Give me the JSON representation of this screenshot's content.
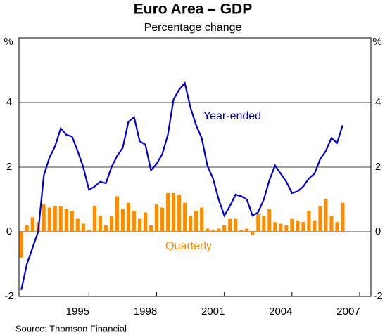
{
  "chart_data": {
    "type": "bar_line",
    "title": "Euro Area – GDP",
    "subtitle": "Percentage change",
    "y_unit": "%",
    "source": "Source: Thomson Financial",
    "x": [
      1992.0,
      1992.25,
      1992.5,
      1992.75,
      1993.0,
      1993.25,
      1993.5,
      1993.75,
      1994.0,
      1994.25,
      1994.5,
      1994.75,
      1995.0,
      1995.25,
      1995.5,
      1995.75,
      1996.0,
      1996.25,
      1996.5,
      1996.75,
      1997.0,
      1997.25,
      1997.5,
      1997.75,
      1998.0,
      1998.25,
      1998.5,
      1998.75,
      1999.0,
      1999.25,
      1999.5,
      1999.75,
      2000.0,
      2000.25,
      2000.5,
      2000.75,
      2001.0,
      2001.25,
      2001.5,
      2001.75,
      2002.0,
      2002.25,
      2002.5,
      2002.75,
      2003.0,
      2003.25,
      2003.5,
      2003.75,
      2004.0,
      2004.25,
      2004.5,
      2004.75,
      2005.0,
      2005.25,
      2005.5,
      2005.75,
      2006.0,
      2006.25
    ],
    "series": [
      {
        "name": "Quarterly",
        "kind": "bar",
        "color": "#ff8c00",
        "values": [
          -0.8,
          0.2,
          0.45,
          0.3,
          0.85,
          0.75,
          0.8,
          0.8,
          0.7,
          0.65,
          0.4,
          0.25,
          0.05,
          0.8,
          0.5,
          0.2,
          0.5,
          1.1,
          0.7,
          0.9,
          0.65,
          0.4,
          0.6,
          0.2,
          0.85,
          0.75,
          1.2,
          1.2,
          1.15,
          0.9,
          0.5,
          0.65,
          0.75,
          0.1,
          0.05,
          0.1,
          0.2,
          0.4,
          0.4,
          0.05,
          0.1,
          -0.1,
          0.55,
          0.5,
          0.7,
          0.3,
          0.25,
          0.2,
          0.4,
          0.35,
          0.3,
          0.65,
          0.35,
          0.8,
          1.0,
          0.5,
          0.3,
          0.9
        ]
      },
      {
        "name": "Year-ended",
        "kind": "line",
        "color": "#0000cc",
        "values": [
          -1.8,
          -1.0,
          -0.5,
          0.0,
          1.75,
          2.3,
          2.65,
          3.2,
          3.0,
          2.95,
          2.5,
          2.0,
          1.3,
          1.4,
          1.55,
          1.5,
          2.0,
          2.35,
          2.6,
          3.4,
          3.55,
          2.8,
          2.7,
          1.9,
          2.1,
          2.4,
          3.0,
          4.1,
          4.4,
          4.6,
          3.85,
          3.3,
          2.9,
          2.05,
          1.65,
          1.0,
          0.5,
          0.8,
          1.15,
          1.1,
          1.0,
          0.5,
          0.6,
          1.0,
          1.6,
          2.05,
          1.8,
          1.55,
          1.2,
          1.25,
          1.4,
          1.65,
          1.8,
          2.25,
          2.5,
          2.9,
          2.75,
          3.3
        ]
      }
    ],
    "xlim": [
      1991.9,
      2007.5
    ],
    "xticks": [
      1995,
      1998,
      2001,
      2004,
      2007
    ],
    "ylim": [
      -2,
      6
    ],
    "yticks": [
      -2,
      0,
      2,
      4
    ],
    "grid": true
  }
}
